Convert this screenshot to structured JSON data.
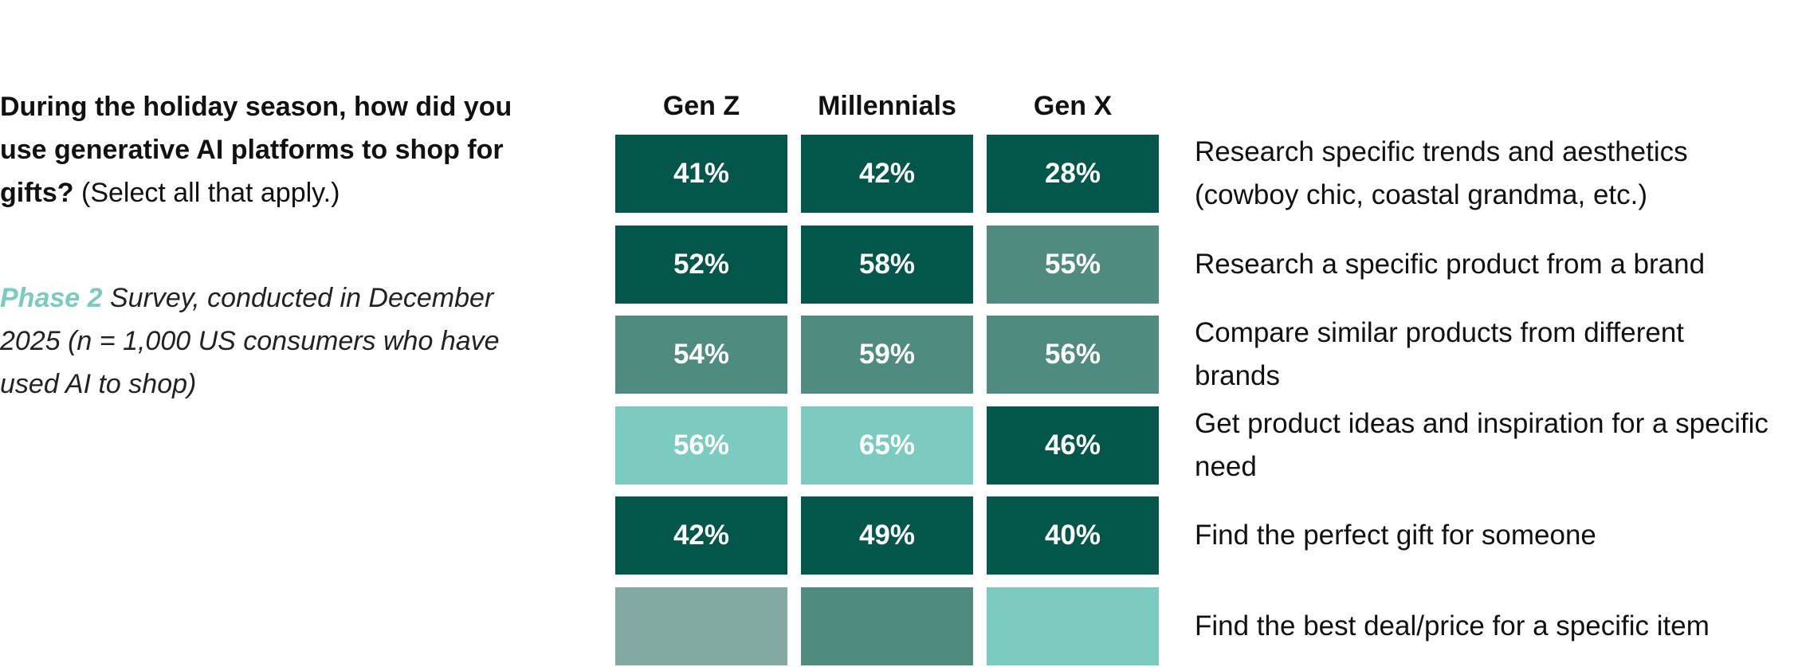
{
  "chart_data": {
    "type": "heatmap",
    "title": "During the holiday season, how did you use generative AI platforms to shop for gifts?",
    "title_note": "(Select all that apply.)",
    "subtitle_highlight": "Phase 2",
    "subtitle": "Survey, conducted in December 2025 (n = 1,000 US consumers who have used AI to shop)",
    "columns": [
      "Gen Z",
      "Millennials",
      "Gen X"
    ],
    "categories": [
      "Research specific trends and aesthetics (cowboy chic, coastal grandma, etc.)",
      "Research a specific product from a brand",
      "Compare similar products from different brands",
      "Get product ideas and inspiration for a specific need",
      "Find the perfect gift for someone",
      "Find the best deal/price for a specific item"
    ],
    "values": [
      [
        41,
        42,
        28
      ],
      [
        52,
        58,
        55
      ],
      [
        54,
        59,
        56
      ],
      [
        56,
        65,
        46
      ],
      [
        42,
        49,
        40
      ],
      [
        null,
        null,
        null
      ]
    ],
    "value_labels": [
      [
        "41%",
        "42%",
        "28%"
      ],
      [
        "52%",
        "58%",
        "55%"
      ],
      [
        "54%",
        "59%",
        "56%"
      ],
      [
        "56%",
        "65%",
        "46%"
      ],
      [
        "42%",
        "49%",
        "40%"
      ],
      [
        null,
        null,
        null
      ]
    ],
    "colors": [
      [
        "#03574a",
        "#03574a",
        "#03574a"
      ],
      [
        "#03574a",
        "#03574a",
        "#4f8b7f"
      ],
      [
        "#4f8b7f",
        "#4f8b7f",
        "#4f8b7f"
      ],
      [
        "#7ccbc0",
        "#7ccbc0",
        "#03574a"
      ],
      [
        "#03574a",
        "#03574a",
        "#03574a"
      ],
      [
        "#82aaa3",
        "#4f8b7f",
        "#7ccbc0"
      ]
    ]
  }
}
